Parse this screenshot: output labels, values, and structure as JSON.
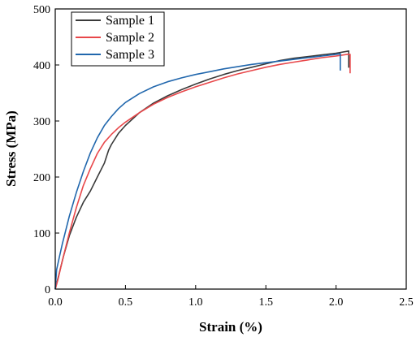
{
  "chart_data": {
    "type": "line",
    "title": "",
    "xlabel": "Strain (%)",
    "ylabel": "Stress (MPa)",
    "xlim": [
      0,
      2.5
    ],
    "ylim": [
      0,
      500
    ],
    "xticks": [
      0.0,
      0.5,
      1.0,
      1.5,
      2.0,
      2.5
    ],
    "xtick_labels": [
      "0.0",
      "0.5",
      "1.0",
      "1.5",
      "2.0",
      "2.5"
    ],
    "yticks": [
      0,
      100,
      200,
      300,
      400,
      500
    ],
    "ytick_labels": [
      "0",
      "100",
      "200",
      "300",
      "400",
      "500"
    ],
    "grid": false,
    "legend_position": "top-left",
    "series": [
      {
        "name": "Sample 1",
        "color": "#3a3a3a",
        "points": [
          [
            0.0,
            0
          ],
          [
            0.02,
            20
          ],
          [
            0.06,
            60
          ],
          [
            0.1,
            95
          ],
          [
            0.15,
            128
          ],
          [
            0.2,
            155
          ],
          [
            0.25,
            175
          ],
          [
            0.3,
            200
          ],
          [
            0.35,
            225
          ],
          [
            0.38,
            248
          ],
          [
            0.4,
            258
          ],
          [
            0.45,
            278
          ],
          [
            0.5,
            292
          ],
          [
            0.6,
            315
          ],
          [
            0.7,
            332
          ],
          [
            0.8,
            345
          ],
          [
            0.9,
            356
          ],
          [
            1.0,
            366
          ],
          [
            1.1,
            375
          ],
          [
            1.2,
            383
          ],
          [
            1.3,
            390
          ],
          [
            1.4,
            396
          ],
          [
            1.5,
            402
          ],
          [
            1.6,
            408
          ],
          [
            1.7,
            412
          ],
          [
            1.8,
            415
          ],
          [
            1.9,
            418
          ],
          [
            2.0,
            421
          ],
          [
            2.07,
            424
          ],
          [
            2.09,
            425
          ],
          [
            2.09,
            395
          ]
        ]
      },
      {
        "name": "Sample 2",
        "color": "#e8474a",
        "points": [
          [
            0.0,
            0
          ],
          [
            0.02,
            18
          ],
          [
            0.05,
            50
          ],
          [
            0.1,
            100
          ],
          [
            0.15,
            145
          ],
          [
            0.2,
            185
          ],
          [
            0.25,
            215
          ],
          [
            0.3,
            242
          ],
          [
            0.35,
            262
          ],
          [
            0.4,
            276
          ],
          [
            0.45,
            288
          ],
          [
            0.5,
            298
          ],
          [
            0.6,
            315
          ],
          [
            0.7,
            330
          ],
          [
            0.8,
            342
          ],
          [
            0.9,
            352
          ],
          [
            1.0,
            361
          ],
          [
            1.1,
            369
          ],
          [
            1.2,
            377
          ],
          [
            1.3,
            384
          ],
          [
            1.4,
            390
          ],
          [
            1.5,
            396
          ],
          [
            1.6,
            401
          ],
          [
            1.7,
            405
          ],
          [
            1.8,
            409
          ],
          [
            1.9,
            413
          ],
          [
            2.0,
            416
          ],
          [
            2.08,
            419
          ],
          [
            2.1,
            419
          ],
          [
            2.1,
            385
          ]
        ]
      },
      {
        "name": "Sample 3",
        "color": "#2167ad",
        "points": [
          [
            0.0,
            0
          ],
          [
            0.01,
            35
          ],
          [
            0.03,
            58
          ],
          [
            0.05,
            80
          ],
          [
            0.1,
            130
          ],
          [
            0.15,
            172
          ],
          [
            0.2,
            210
          ],
          [
            0.25,
            243
          ],
          [
            0.3,
            270
          ],
          [
            0.35,
            292
          ],
          [
            0.4,
            308
          ],
          [
            0.45,
            322
          ],
          [
            0.5,
            333
          ],
          [
            0.6,
            349
          ],
          [
            0.7,
            361
          ],
          [
            0.8,
            370
          ],
          [
            0.9,
            377
          ],
          [
            1.0,
            383
          ],
          [
            1.1,
            388
          ],
          [
            1.2,
            393
          ],
          [
            1.3,
            397
          ],
          [
            1.4,
            401
          ],
          [
            1.5,
            404
          ],
          [
            1.6,
            407
          ],
          [
            1.7,
            410
          ],
          [
            1.8,
            413
          ],
          [
            1.9,
            416
          ],
          [
            2.0,
            419
          ],
          [
            2.03,
            420
          ],
          [
            2.03,
            390
          ]
        ]
      }
    ]
  }
}
